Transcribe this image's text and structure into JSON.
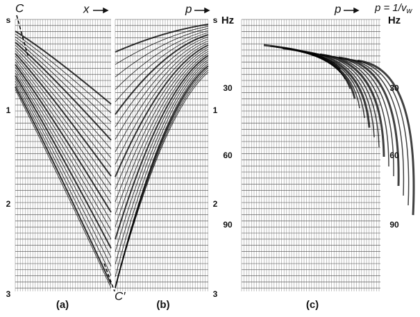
{
  "panel_a": {
    "corner": "C",
    "axis": "x",
    "left_ticks": [
      "s",
      "1",
      "2",
      "3"
    ],
    "label": "(a)",
    "end": "C′"
  },
  "panel_b": {
    "axis": "p",
    "right_ticks": [
      "s",
      "1",
      "2",
      "3"
    ],
    "label": "(b)"
  },
  "panel_c": {
    "axis": "p",
    "left_ticks": [
      "Hz",
      "30",
      "60",
      "90"
    ],
    "right_ticks": [
      "Hz",
      "30",
      "60",
      "90"
    ],
    "label": "(c)",
    "note": {
      "main": "p = 1/v",
      "sub": "w"
    }
  }
}
